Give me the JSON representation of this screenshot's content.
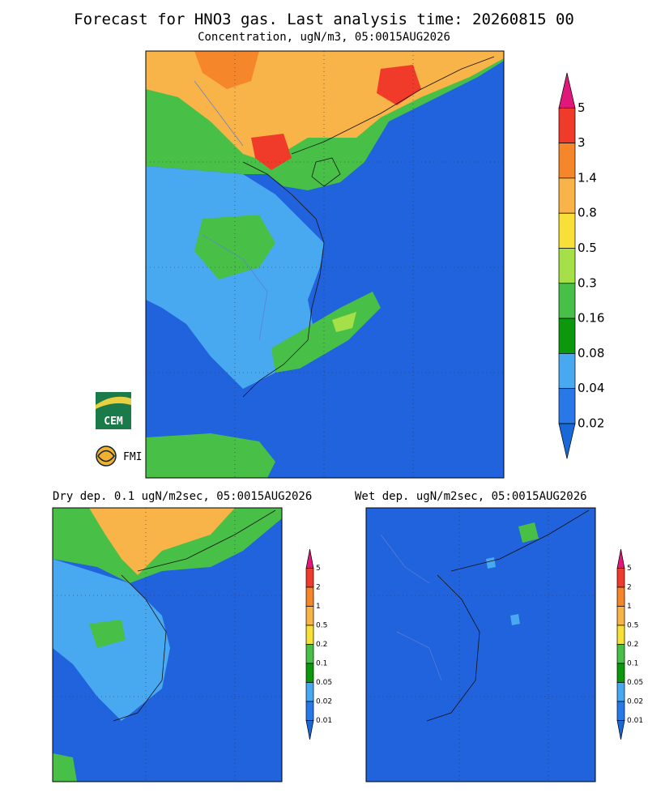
{
  "header": {
    "title": "Forecast for HNO3 gas. Last analysis time: 20260815 00",
    "subtitle": "Concentration, ugN/m3, 05:0015AUG2026"
  },
  "main_map": {
    "colorbar": {
      "labels": [
        5,
        3,
        1.4,
        0.8,
        0.5,
        0.3,
        0.16,
        0.08,
        0.04,
        0.02
      ],
      "colors": [
        "#e0187a",
        "#f03a2a",
        "#f5862a",
        "#f8b448",
        "#f8e038",
        "#a6e048",
        "#48c048",
        "#0c980c",
        "#48a8f0",
        "#2878e8",
        "#1868d8"
      ]
    }
  },
  "logos": {
    "cem": "CEM",
    "fmi": "FMI"
  },
  "dry_map": {
    "title": "Dry dep. 0.1 ugN/m2sec, 05:0015AUG2026",
    "colorbar": {
      "labels": [
        5,
        2,
        1,
        0.5,
        0.2,
        0.1,
        0.05,
        0.02,
        0.01
      ],
      "colors": [
        "#e0187a",
        "#f03a2a",
        "#f5862a",
        "#f8b448",
        "#f8e038",
        "#48c048",
        "#0c980c",
        "#48a8f0",
        "#2878e8",
        "#1868d8"
      ]
    }
  },
  "wet_map": {
    "title": "Wet dep. ugN/m2sec, 05:0015AUG2026",
    "colorbar": {
      "labels": [
        5,
        2,
        1,
        0.5,
        0.2,
        0.1,
        0.05,
        0.02,
        0.01
      ],
      "colors": [
        "#e0187a",
        "#f03a2a",
        "#f5862a",
        "#f8b448",
        "#f8e038",
        "#48c048",
        "#0c980c",
        "#48a8f0",
        "#2878e8",
        "#1868d8"
      ]
    }
  }
}
